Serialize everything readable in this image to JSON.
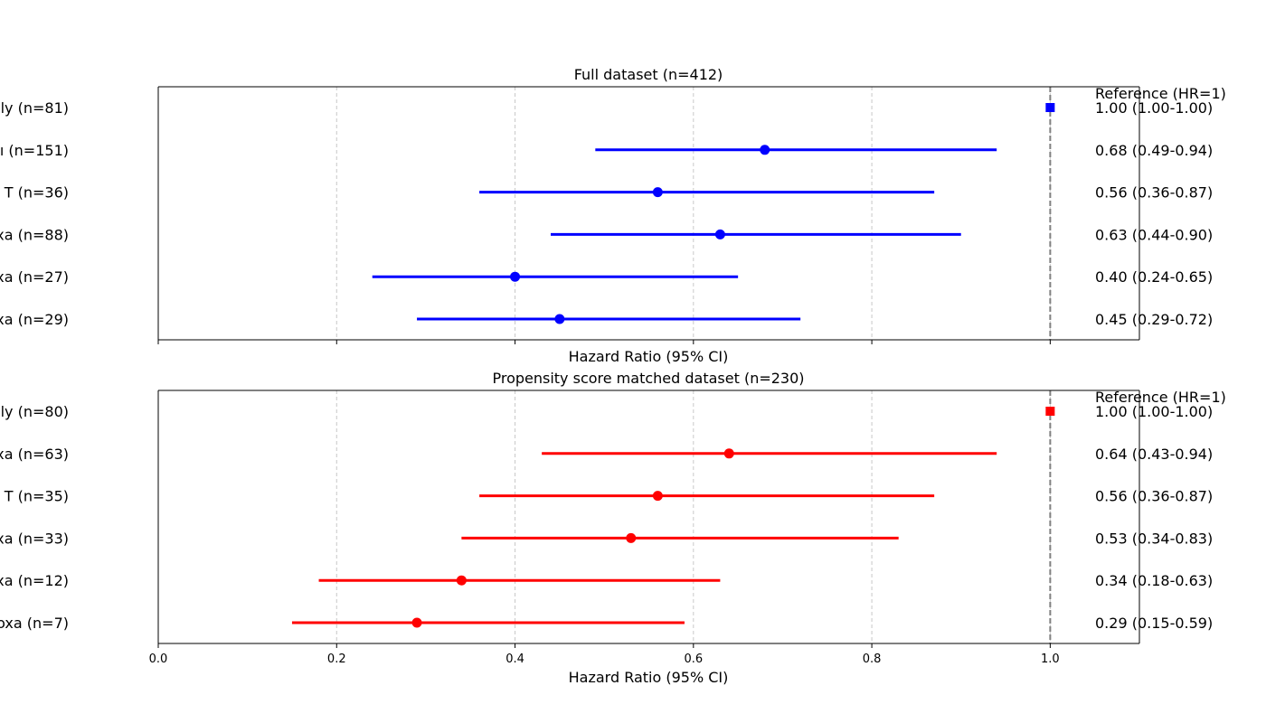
{
  "chart_data": [
    {
      "type": "forest",
      "title": "Full dataset (n=412)",
      "xlabel": "Hazard Ratio (95% CI)",
      "ylabel": "",
      "xlim": [
        0,
        1.1
      ],
      "xticks": [
        0.0,
        0.2,
        0.4,
        0.6,
        0.8,
        1.0
      ],
      "xtick_labels": [],
      "grid": "vertical dashed",
      "color": "#0000ff",
      "reference_line": 1.0,
      "reference_label": "Reference (HR=1)",
      "rows": [
        {
          "label": "ly (n=81)",
          "hr": 1.0,
          "lo": 1.0,
          "hi": 1.0,
          "hr_text": "1.00 (1.00-1.00)",
          "marker": "square"
        },
        {
          "label": "ı (n=151)",
          "hr": 0.68,
          "lo": 0.49,
          "hi": 0.94,
          "hr_text": "0.68 (0.49-0.94)",
          "marker": "circle"
        },
        {
          "label": "T (n=36)",
          "hr": 0.56,
          "lo": 0.36,
          "hi": 0.87,
          "hr_text": "0.56 (0.36-0.87)",
          "marker": "circle"
        },
        {
          "label": "xa (n=88)",
          "hr": 0.63,
          "lo": 0.44,
          "hi": 0.9,
          "hr_text": "0.63 (0.44-0.90)",
          "marker": "circle"
        },
        {
          "label": "xa (n=27)",
          "hr": 0.4,
          "lo": 0.24,
          "hi": 0.65,
          "hr_text": "0.40 (0.24-0.65)",
          "marker": "circle"
        },
        {
          "label": "xa (n=29)",
          "hr": 0.45,
          "lo": 0.29,
          "hi": 0.72,
          "hr_text": "0.45 (0.29-0.72)",
          "marker": "circle"
        }
      ]
    },
    {
      "type": "forest",
      "title": "Propensity score matched dataset (n=230)",
      "xlabel": "Hazard Ratio (95% CI)",
      "ylabel": "",
      "xlim": [
        0,
        1.1
      ],
      "xticks": [
        0.0,
        0.2,
        0.4,
        0.6,
        0.8,
        1.0
      ],
      "xtick_labels": [
        "0.0",
        "0.2",
        "0.4",
        "0.6",
        "0.8",
        "1.0"
      ],
      "grid": "vertical dashed",
      "color": "#ff0000",
      "reference_line": 1.0,
      "reference_label": "Reference (HR=1)",
      "rows": [
        {
          "label": "ly (n=80)",
          "hr": 1.0,
          "lo": 1.0,
          "hi": 1.0,
          "hr_text": "1.00 (1.00-1.00)",
          "marker": "square"
        },
        {
          "label": "xa (n=63)",
          "hr": 0.64,
          "lo": 0.43,
          "hi": 0.94,
          "hr_text": "0.64 (0.43-0.94)",
          "marker": "circle"
        },
        {
          "label": "T (n=35)",
          "hr": 0.56,
          "lo": 0.36,
          "hi": 0.87,
          "hr_text": "0.56 (0.36-0.87)",
          "marker": "circle"
        },
        {
          "label": "xa (n=33)",
          "hr": 0.53,
          "lo": 0.34,
          "hi": 0.83,
          "hr_text": "0.53 (0.34-0.83)",
          "marker": "circle"
        },
        {
          "label": "xa (n=12)",
          "hr": 0.34,
          "lo": 0.18,
          "hi": 0.63,
          "hr_text": "0.34 (0.18-0.63)",
          "marker": "circle"
        },
        {
          "label": "oxa (n=7)",
          "hr": 0.29,
          "lo": 0.15,
          "hi": 0.59,
          "hr_text": "0.29 (0.15-0.59)",
          "marker": "circle"
        }
      ]
    }
  ],
  "colors": {
    "grid": "#c8c8c8",
    "reference_line": "#808080",
    "axis": "#000000"
  }
}
